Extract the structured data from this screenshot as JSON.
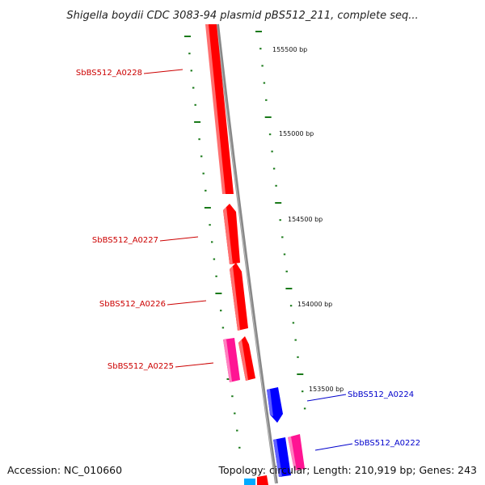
{
  "title": "Shigella boydii CDC 3083-94 plasmid pBS512_211, complete seq...",
  "footer": {
    "accession": "Accession: NC_010660",
    "summary": "Topology: circular; Length: 210,919 bp; Genes: 243"
  },
  "colors": {
    "forward_gene": "#ff0000",
    "reverse_gene": "#0000ff",
    "pseudo_gene": "#ff1493",
    "ticks": "#1a7a1a",
    "backbone": "#888888",
    "forward_label": "#cc0000",
    "reverse_label": "#0000cc"
  },
  "bp_labels": [
    {
      "text": "155500 bp",
      "pos": 155500
    },
    {
      "text": "155000 bp",
      "pos": 155000
    },
    {
      "text": "154500 bp",
      "pos": 154500
    },
    {
      "text": "154000 bp",
      "pos": 154000
    },
    {
      "text": "153500 bp",
      "pos": 153500
    }
  ],
  "genes": [
    {
      "label": "SbBS512_A0228",
      "strand": "forward"
    },
    {
      "label": "SbBS512_A0227",
      "strand": "forward"
    },
    {
      "label": "SbBS512_A0226",
      "strand": "forward"
    },
    {
      "label": "SbBS512_A0225",
      "strand": "forward"
    },
    {
      "label": "SbBS512_A0224",
      "strand": "reverse"
    },
    {
      "label": "SbBS512_A0222",
      "strand": "reverse"
    }
  ]
}
